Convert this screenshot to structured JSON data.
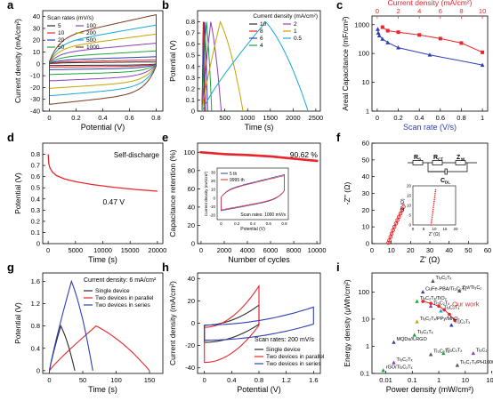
{
  "chart_data": [
    {
      "id": "a",
      "type": "line",
      "panel_label": "a",
      "xlabel": "Potential (V)",
      "ylabel": "Current density (mA/cm²)",
      "xlim": [
        -0.05,
        0.85
      ],
      "ylim": [
        -40,
        45
      ],
      "xticks": [
        0.0,
        0.2,
        0.4,
        0.6,
        0.8
      ],
      "yticks": [
        -40,
        -30,
        -20,
        -10,
        0,
        10,
        20,
        30,
        40
      ],
      "legend_title": "Scan rates (mV/s)",
      "legend_position": "top-left",
      "cv_loops": [
        {
          "name": "5",
          "color": "#2b2b2b",
          "amp": 1.5
        },
        {
          "name": "10",
          "color": "#e8262b",
          "amp": 3.0
        },
        {
          "name": "20",
          "color": "#2e3fb0",
          "amp": 5.5
        },
        {
          "name": "50",
          "color": "#1ea33a",
          "amp": 10
        },
        {
          "name": "100",
          "color": "#8b3fb5",
          "amp": 16
        },
        {
          "name": "200",
          "color": "#c4a500",
          "amp": 23
        },
        {
          "name": "500",
          "color": "#1aa7d6",
          "amp": 30
        },
        {
          "name": "1000",
          "color": "#7a3a1e",
          "amp": 38
        }
      ]
    },
    {
      "id": "b",
      "type": "line",
      "panel_label": "b",
      "xlabel": "Time (s)",
      "ylabel": "Potential (V)",
      "xlim": [
        -100,
        2600
      ],
      "ylim": [
        0,
        0.9
      ],
      "xticks": [
        0,
        500,
        1000,
        1500,
        2000,
        2500
      ],
      "yticks": [
        0.0,
        0.1,
        0.2,
        0.3,
        0.4,
        0.5,
        0.6,
        0.7,
        0.8
      ],
      "legend_title": "Current density (mA/cm²)",
      "legend_position": "top-right",
      "series": [
        {
          "name": "10",
          "color": "#2b2b2b",
          "t_peak": 25,
          "t_end": 55
        },
        {
          "name": "8",
          "color": "#e8262b",
          "t_peak": 35,
          "t_end": 75
        },
        {
          "name": "6",
          "color": "#2e3fb0",
          "t_peak": 55,
          "t_end": 120
        },
        {
          "name": "4",
          "color": "#1ea33a",
          "t_peak": 95,
          "t_end": 210
        },
        {
          "name": "2",
          "color": "#8b3fb5",
          "t_peak": 190,
          "t_end": 420
        },
        {
          "name": "1",
          "color": "#c4a500",
          "t_peak": 400,
          "t_end": 900
        },
        {
          "name": "0.5",
          "color": "#1aa7d6",
          "t_peak": 1400,
          "t_end": 2330
        }
      ]
    },
    {
      "id": "c",
      "type": "line",
      "panel_label": "c",
      "xlabel": "Scan rate (V/s)",
      "ylabel": "Areal Capacitance (mF/cm²)",
      "xlabel_top": "Current density (mA/cm²)",
      "xlim": [
        -0.05,
        1.05
      ],
      "ylim_log": [
        1,
        2000
      ],
      "y_scale": "log",
      "xticks": [
        0.0,
        0.2,
        0.4,
        0.6,
        0.8,
        1.0
      ],
      "xticks_top": [
        0,
        2,
        4,
        6,
        8,
        10
      ],
      "xlim_top": [
        -0.5,
        10.5
      ],
      "yticks": [
        1,
        10,
        100,
        1000
      ],
      "ytick_labels": [
        "1",
        "10",
        "100",
        "1000"
      ],
      "series": [
        {
          "axis": "top",
          "color": "#e8262b",
          "marker": "square",
          "x": [
            0.5,
            1,
            2,
            4,
            6,
            8,
            10
          ],
          "y": [
            820,
            620,
            550,
            440,
            330,
            230,
            110
          ]
        },
        {
          "axis": "bottom",
          "color": "#2e3fb0",
          "marker": "triangle",
          "x": [
            0.005,
            0.01,
            0.02,
            0.05,
            0.1,
            0.2,
            0.5,
            1.0
          ],
          "y": [
            700,
            520,
            420,
            320,
            240,
            160,
            90,
            40
          ]
        }
      ]
    },
    {
      "id": "d",
      "type": "line",
      "panel_label": "d",
      "xlabel": "Time (s)",
      "ylabel": "Potential (V)",
      "xlim": [
        -1000,
        21000
      ],
      "ylim": [
        0,
        0.9
      ],
      "xticks": [
        0,
        5000,
        10000,
        15000,
        20000
      ],
      "yticks": [
        0.0,
        0.1,
        0.2,
        0.3,
        0.4,
        0.5,
        0.6,
        0.7,
        0.8
      ],
      "annotation": "Self-discharge",
      "value_label": "0.47 V",
      "series": [
        {
          "color": "#e8262b",
          "x": [
            0,
            100,
            300,
            800,
            1500,
            3000,
            5000,
            8000,
            12000,
            16000,
            20000
          ],
          "y": [
            0.8,
            0.72,
            0.68,
            0.64,
            0.61,
            0.58,
            0.555,
            0.53,
            0.505,
            0.485,
            0.47
          ]
        }
      ]
    },
    {
      "id": "e",
      "type": "line",
      "panel_label": "e",
      "xlabel": "Number of cycles",
      "ylabel": "Capacitance retention (%)",
      "xlim": [
        -300,
        10300
      ],
      "ylim": [
        0,
        110
      ],
      "xticks": [
        0,
        2000,
        4000,
        6000,
        8000,
        10000
      ],
      "yticks": [
        0,
        20,
        40,
        60,
        80,
        100
      ],
      "value_label": "90.62 %",
      "series": [
        {
          "color": "#e8262b",
          "x": [
            0,
            2000,
            4000,
            6000,
            8000,
            10000
          ],
          "y": [
            100,
            98,
            97,
            95.5,
            93,
            90.6
          ]
        }
      ],
      "inset": {
        "xlabel": "Potential (V)",
        "ylabel": "Current density (mA/cm²)",
        "xticks": [
          0.0,
          0.2,
          0.4,
          0.6,
          0.8
        ],
        "yticks": [
          -20,
          -10,
          0,
          10,
          20,
          30
        ],
        "note": "Scan rates: 1000 mV/s",
        "legend": [
          {
            "name": "5 th",
            "color": "#2e3fb0"
          },
          {
            "name": "9995 th",
            "color": "#e8262b"
          }
        ]
      }
    },
    {
      "id": "f",
      "type": "scatter",
      "panel_label": "f",
      "xlabel": "Z' (Ω)",
      "ylabel": "-Z'' (Ω)",
      "xlim": [
        0,
        60
      ],
      "ylim": [
        0,
        60
      ],
      "xticks": [
        0,
        10,
        20,
        30,
        40,
        50,
        60
      ],
      "yticks": [
        0,
        10,
        20,
        30,
        40,
        50,
        60
      ],
      "circuit_labels": {
        "rs": "R",
        "rs_sub": "S",
        "rct": "R",
        "rct_sub": "CT",
        "zw": "Z",
        "zw_sub": "W",
        "c": "C",
        "c_sub": "DL"
      },
      "series": [
        {
          "color": "#e8262b",
          "x": [
            8.5,
            9,
            9.6,
            10.2,
            10.9,
            11.6,
            12.4,
            13.2,
            14.0,
            14.8,
            15.6,
            16.4
          ],
          "y": [
            0.5,
            2,
            4,
            6,
            8,
            10,
            12,
            14,
            16,
            18,
            20,
            22
          ]
        }
      ],
      "inset": {
        "xlabel": "Z' (Ω)",
        "ylabel": "-Z'' (Ω)",
        "xticks": [
          0,
          5,
          10,
          15,
          20
        ],
        "yticks": [
          0,
          5,
          10,
          15,
          20
        ]
      }
    },
    {
      "id": "g",
      "type": "line",
      "panel_label": "g",
      "xlabel": "Time (s)",
      "ylabel": "Potential (V)",
      "xlim": [
        -10,
        170
      ],
      "ylim": [
        -0.05,
        1.75
      ],
      "xticks": [
        0,
        50,
        100,
        150
      ],
      "yticks": [
        0.0,
        0.4,
        0.8,
        1.2,
        1.6
      ],
      "annotation": "Current density: 6 mA/cm²",
      "series": [
        {
          "name": "Single device",
          "color": "#2b2b2b",
          "x": [
            0,
            17,
            38
          ],
          "y": [
            0,
            0.8,
            0
          ]
        },
        {
          "name": "Two devices in parallel",
          "color": "#e8262b",
          "x": [
            0,
            70,
            150
          ],
          "y": [
            0,
            0.8,
            0
          ]
        },
        {
          "name": "Two devices in series",
          "color": "#2e3fb0",
          "x": [
            0,
            33,
            65
          ],
          "y": [
            0,
            1.6,
            0
          ]
        }
      ]
    },
    {
      "id": "h",
      "type": "line",
      "panel_label": "h",
      "xlabel": "Potential (V)",
      "ylabel": "Current density (mA/cm²)",
      "xlim": [
        -0.1,
        1.7
      ],
      "ylim": [
        -45,
        45
      ],
      "xticks": [
        0.0,
        0.4,
        0.8,
        1.2,
        1.6
      ],
      "yticks": [
        -40,
        -20,
        0,
        20,
        40
      ],
      "annotation": "Scan rates: 200 mV/s",
      "series": [
        {
          "name": "Single device",
          "color": "#2b2b2b",
          "vmax": 0.8,
          "amp": 18
        },
        {
          "name": "Two devices in parallel",
          "color": "#e8262b",
          "vmax": 0.8,
          "amp": 37
        },
        {
          "name": "Two devices in series",
          "color": "#2e3fb0",
          "vmax": 1.6,
          "amp": 16
        }
      ]
    },
    {
      "id": "i",
      "type": "scatter",
      "panel_label": "i",
      "xlabel": "Power density (mW/cm²)",
      "ylabel": "Energy density (μWh/cm²)",
      "x_scale": "log",
      "y_scale": "log",
      "xlim_log": [
        0.003,
        70
      ],
      "ylim_log": [
        0.1,
        500
      ],
      "xticks": [
        0.01,
        0.1,
        1,
        10,
        100
      ],
      "xtick_labels": [
        "0.01",
        "0.1",
        "1",
        "10",
        "100"
      ],
      "yticks": [
        0.1,
        1,
        10,
        100
      ],
      "ytick_labels": [
        "0.1",
        "1",
        "10",
        "100"
      ],
      "our_work_label": "Our work",
      "our_work": {
        "color": "#e8262b",
        "x": [
          0.25,
          0.5,
          1,
          1.6,
          2.5,
          4
        ],
        "y": [
          45,
          38,
          30,
          22,
          15,
          9
        ]
      },
      "points": [
        {
          "label": "Ti₃C₂Tₓ",
          "x": 0.6,
          "y": 250,
          "color": "#555555"
        },
        {
          "label": "CuFe-PBA/Ti₃C₂Tₓ",
          "x": 0.25,
          "y": 100,
          "color": "#2e3fb0"
        },
        {
          "label": "Zn//Ti₃C₂",
          "x": 6,
          "y": 110,
          "color": "#555555"
        },
        {
          "label": "Ti₃C₂Tₓ/TiO₂",
          "x": 0.15,
          "y": 45,
          "color": "#1ea33a"
        },
        {
          "label": "Ti₃C₂Tₓ",
          "x": 0.5,
          "y": 30,
          "color": "#8b3fb5"
        },
        {
          "label": "Ti₃C₂Tₓ",
          "x": 1.2,
          "y": 20,
          "color": "#1aa7d6"
        },
        {
          "label": "Ti₃C₂Tₓ/PPy/MnO₂",
          "x": 0.15,
          "y": 8,
          "color": "#c4a500"
        },
        {
          "label": "Ti₃C₂Tₓ",
          "x": 3,
          "y": 6,
          "color": "#2e3fb0"
        },
        {
          "label": "Ti₃C₂Tₓ",
          "x": 0.12,
          "y": 2.6,
          "color": "#1ea33a"
        },
        {
          "label": "MQDs//LRGO",
          "x": 0.02,
          "y": 1.4,
          "color": "#2e3fb0"
        },
        {
          "label": "Ti₃C₂Tₓ",
          "x": 0.5,
          "y": 0.5,
          "color": "#555555"
        },
        {
          "label": "Ti₃C₂Tₓ",
          "x": 1.5,
          "y": 0.55,
          "color": "#1ea33a"
        },
        {
          "label": "Ti₃C₂",
          "x": 20,
          "y": 0.55,
          "color": "#8b3fb5"
        },
        {
          "label": "Ti₃C₂Tₓ",
          "x": 0.02,
          "y": 0.25,
          "color": "#8b3fb5"
        },
        {
          "label": "rGO/Ti₃C₂Tₓ",
          "x": 0.008,
          "y": 0.13,
          "color": "#1ea33a"
        },
        {
          "label": "Ti₃C₂Tₓ/PH1000",
          "x": 5,
          "y": 0.2,
          "color": "#555555"
        }
      ]
    }
  ]
}
